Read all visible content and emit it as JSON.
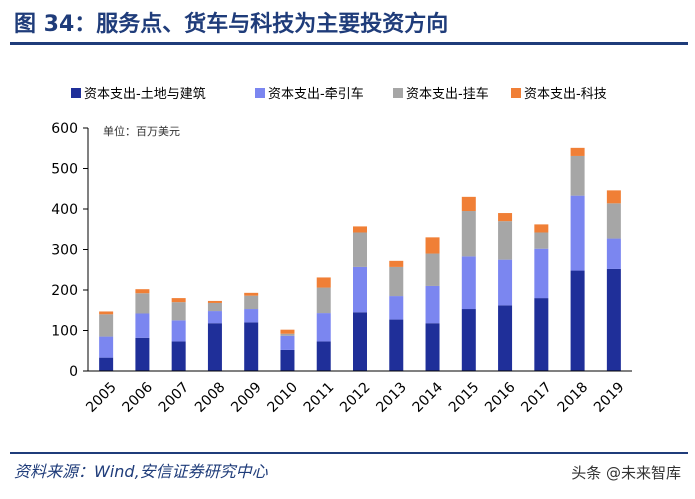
{
  "figure": {
    "title": "图 34：服务点、货车与科技为主要投资方向",
    "source": "资料来源：Wind,安信证券研究中心",
    "watermark": "头条 @未来智库"
  },
  "chart_data": {
    "type": "bar",
    "stacked": true,
    "unit_note": "单位：百万美元",
    "categories": [
      "2005",
      "2006",
      "2007",
      "2008",
      "2009",
      "2010",
      "2011",
      "2012",
      "2013",
      "2014",
      "2015",
      "2016",
      "2017",
      "2018",
      "2019"
    ],
    "series": [
      {
        "name": "资本支出-土地与建筑",
        "color": "#1f2f99",
        "values": [
          33,
          82,
          73,
          118,
          120,
          52,
          73,
          145,
          127,
          118,
          153,
          162,
          180,
          248,
          252
        ]
      },
      {
        "name": "资本支出-牵引车",
        "color": "#7b86f0",
        "values": [
          52,
          60,
          52,
          30,
          33,
          35,
          70,
          112,
          58,
          92,
          130,
          113,
          122,
          185,
          75
        ]
      },
      {
        "name": "资本支出-挂车",
        "color": "#a6a6a6",
        "values": [
          55,
          50,
          45,
          20,
          33,
          5,
          63,
          85,
          72,
          80,
          112,
          95,
          40,
          98,
          87
        ]
      },
      {
        "name": "资本支出-科技",
        "color": "#f07f36",
        "values": [
          7,
          10,
          10,
          5,
          7,
          10,
          25,
          15,
          15,
          40,
          35,
          20,
          20,
          20,
          32
        ]
      }
    ],
    "ylim": [
      0,
      600
    ],
    "yticks": [
      0,
      100,
      200,
      300,
      400,
      500,
      600
    ],
    "grid": false,
    "legend": "top"
  }
}
